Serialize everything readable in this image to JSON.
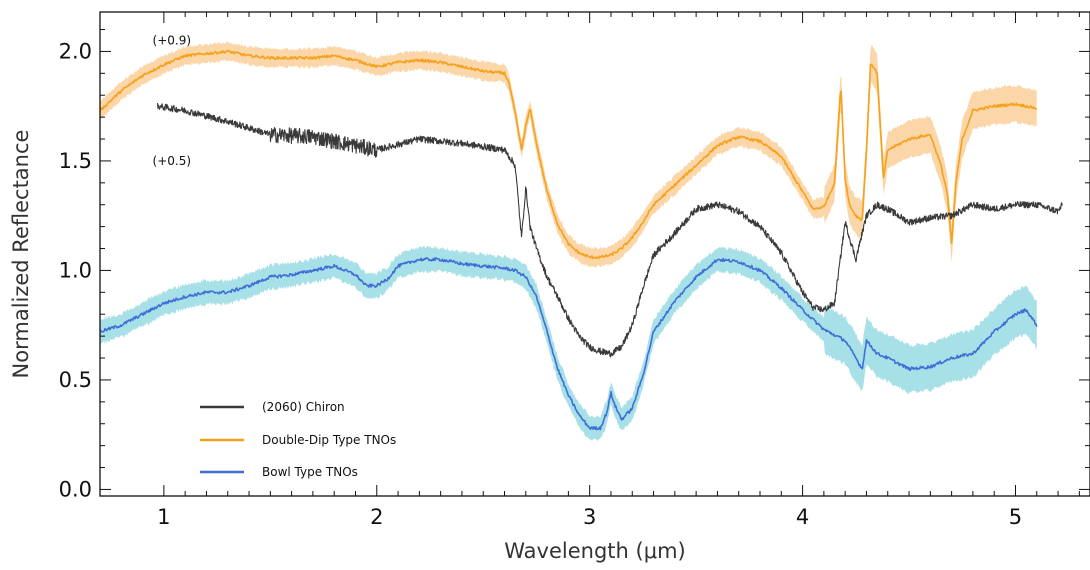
{
  "chart_data": {
    "type": "line",
    "xlabel": "Wavelength (μm)",
    "ylabel": "Normalized Reflectance",
    "xlim": [
      0.7,
      5.35
    ],
    "ylim": [
      -0.03,
      2.18
    ],
    "x_ticks": [
      1,
      2,
      3,
      4,
      5
    ],
    "x_tick_labels": [
      "1",
      "2",
      "3",
      "4",
      "5"
    ],
    "y_ticks": [
      0.0,
      0.5,
      1.0,
      1.5,
      2.0
    ],
    "y_tick_labels": [
      "0.0",
      "0.5",
      "1.0",
      "1.5",
      "2.0"
    ],
    "grid": false,
    "legend_position": "bottom-left",
    "annotations": [
      {
        "text": "(+0.9)",
        "x": 1.05,
        "y": 2.05
      },
      {
        "text": "(+0.5)",
        "x": 1.05,
        "y": 1.5
      }
    ],
    "series": [
      {
        "name": "(2060) Chiron",
        "color": "#3a3a3a",
        "band_color": "",
        "noise": 0.03,
        "band_width": 0,
        "x": [
          0.97,
          1.1,
          1.3,
          1.5,
          1.7,
          1.9,
          2.0,
          2.2,
          2.4,
          2.6,
          2.65,
          2.68,
          2.7,
          2.72,
          2.75,
          2.8,
          2.85,
          2.9,
          2.95,
          3.0,
          3.05,
          3.1,
          3.15,
          3.2,
          3.25,
          3.3,
          3.35,
          3.4,
          3.5,
          3.6,
          3.7,
          3.8,
          3.9,
          4.0,
          4.05,
          4.1,
          4.15,
          4.2,
          4.25,
          4.3,
          4.35,
          4.4,
          4.5,
          4.6,
          4.7,
          4.8,
          4.9,
          5.0,
          5.1,
          5.2,
          5.22
        ],
        "y": [
          1.75,
          1.73,
          1.68,
          1.62,
          1.61,
          1.57,
          1.55,
          1.6,
          1.58,
          1.55,
          1.48,
          1.15,
          1.38,
          1.2,
          1.1,
          0.97,
          0.88,
          0.78,
          0.7,
          0.65,
          0.63,
          0.62,
          0.65,
          0.75,
          0.92,
          1.07,
          1.12,
          1.17,
          1.28,
          1.3,
          1.27,
          1.2,
          1.08,
          0.9,
          0.83,
          0.82,
          0.85,
          1.22,
          1.05,
          1.25,
          1.3,
          1.28,
          1.22,
          1.24,
          1.25,
          1.3,
          1.28,
          1.3,
          1.3,
          1.27,
          1.3
        ]
      },
      {
        "name": "Double-Dip Type TNOs",
        "color": "#f5a11c",
        "band_color": "#fbd6a8",
        "noise": 0.012,
        "band_width": 0.035,
        "x": [
          0.7,
          0.8,
          0.9,
          1.0,
          1.1,
          1.2,
          1.3,
          1.4,
          1.5,
          1.6,
          1.7,
          1.8,
          1.9,
          2.0,
          2.1,
          2.2,
          2.3,
          2.4,
          2.5,
          2.6,
          2.62,
          2.65,
          2.68,
          2.7,
          2.72,
          2.75,
          2.8,
          2.85,
          2.9,
          2.95,
          3.0,
          3.05,
          3.1,
          3.15,
          3.2,
          3.25,
          3.3,
          3.4,
          3.5,
          3.6,
          3.7,
          3.8,
          3.9,
          4.0,
          4.05,
          4.1,
          4.15,
          4.18,
          4.2,
          4.22,
          4.25,
          4.28,
          4.3,
          4.32,
          4.35,
          4.38,
          4.4,
          4.5,
          4.6,
          4.65,
          4.68,
          4.7,
          4.72,
          4.75,
          4.8,
          4.9,
          5.0,
          5.1
        ],
        "y": [
          1.73,
          1.82,
          1.89,
          1.94,
          1.98,
          1.99,
          2.0,
          1.98,
          1.97,
          1.97,
          1.97,
          1.98,
          1.96,
          1.93,
          1.95,
          1.96,
          1.95,
          1.93,
          1.91,
          1.9,
          1.86,
          1.72,
          1.55,
          1.66,
          1.74,
          1.58,
          1.36,
          1.21,
          1.12,
          1.08,
          1.06,
          1.06,
          1.07,
          1.1,
          1.15,
          1.22,
          1.3,
          1.39,
          1.48,
          1.57,
          1.61,
          1.59,
          1.52,
          1.36,
          1.28,
          1.29,
          1.4,
          1.84,
          1.42,
          1.3,
          1.25,
          1.23,
          1.55,
          1.95,
          1.9,
          1.42,
          1.55,
          1.6,
          1.62,
          1.48,
          1.35,
          1.12,
          1.4,
          1.6,
          1.73,
          1.75,
          1.76,
          1.74
        ]
      },
      {
        "name": "Bowl Type TNOs",
        "color": "#3f6fd6",
        "band_color": "#a8e0e8",
        "noise": 0.014,
        "band_width": 0.045,
        "x": [
          0.7,
          0.8,
          0.9,
          1.0,
          1.1,
          1.2,
          1.3,
          1.4,
          1.5,
          1.6,
          1.7,
          1.8,
          1.9,
          1.95,
          2.0,
          2.05,
          2.1,
          2.2,
          2.3,
          2.4,
          2.5,
          2.6,
          2.65,
          2.7,
          2.75,
          2.8,
          2.85,
          2.9,
          2.95,
          3.0,
          3.05,
          3.08,
          3.1,
          3.12,
          3.15,
          3.2,
          3.25,
          3.3,
          3.4,
          3.5,
          3.6,
          3.7,
          3.8,
          3.9,
          4.0,
          4.1,
          4.2,
          4.25,
          4.28,
          4.3,
          4.35,
          4.4,
          4.5,
          4.6,
          4.7,
          4.8,
          4.9,
          5.0,
          5.05,
          5.1
        ],
        "y": [
          0.72,
          0.75,
          0.8,
          0.85,
          0.88,
          0.9,
          0.9,
          0.93,
          0.97,
          0.98,
          1.0,
          1.02,
          0.98,
          0.93,
          0.93,
          0.96,
          1.02,
          1.05,
          1.05,
          1.03,
          1.02,
          1.01,
          1.0,
          0.97,
          0.88,
          0.72,
          0.55,
          0.43,
          0.34,
          0.28,
          0.28,
          0.35,
          0.44,
          0.38,
          0.32,
          0.37,
          0.52,
          0.72,
          0.86,
          0.97,
          1.05,
          1.04,
          1.0,
          0.92,
          0.82,
          0.73,
          0.68,
          0.6,
          0.55,
          0.68,
          0.62,
          0.6,
          0.55,
          0.56,
          0.6,
          0.62,
          0.72,
          0.8,
          0.82,
          0.75
        ]
      }
    ]
  }
}
